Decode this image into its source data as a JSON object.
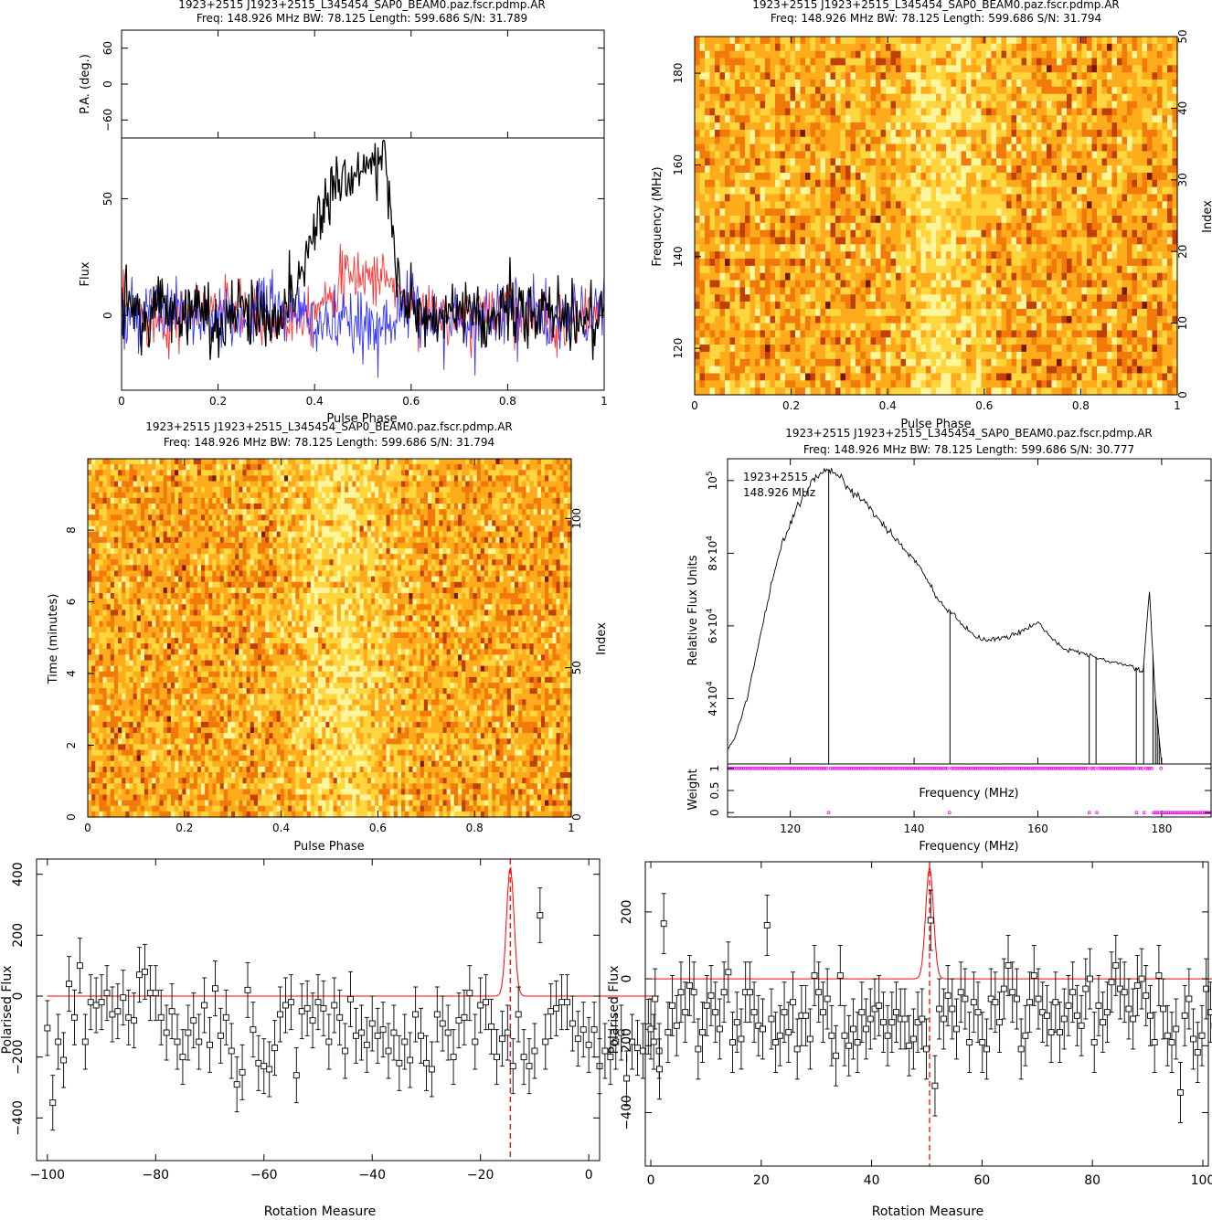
{
  "colors": {
    "stokes_i": "#000000",
    "linear_pol": "#ff3333",
    "circular_pol": "#3333ff",
    "weight_markers": "#ff00ff",
    "rm_fit": "#ff0000",
    "heatmap_palette": [
      "#fff59a",
      "#ffd63d",
      "#ffac1c",
      "#f27a0a",
      "#c0400a",
      "#7a1806"
    ]
  },
  "chart_data": [
    {
      "id": "profile",
      "type": "line",
      "title_line1": "1923+2515  J1923+2515_L345454_SAP0_BEAM0.paz.fscr.pdmp.AR",
      "title_line2": "Freq: 148.926 MHz  BW: 78.125  Length: 599.686  S/N: 31.789",
      "xlabel": "Pulse Phase",
      "ylabel": "Flux",
      "pa_ylabel": "P.A. (deg.)",
      "xlim": [
        0,
        1
      ],
      "ylim": [
        -32,
        76
      ],
      "pa_ylim": [
        -90,
        90
      ],
      "x_ticks": [
        "0",
        "0.2",
        "0.4",
        "0.6",
        "0.8",
        "1"
      ],
      "y_ticks": [
        "0",
        "50"
      ],
      "pa_ticks": [
        "60",
        "0",
        "−60"
      ],
      "series": [
        {
          "component": "I",
          "points": [
            [
              0.0,
              2
            ],
            [
              0.02,
              6
            ],
            [
              0.05,
              -5
            ],
            [
              0.08,
              8
            ],
            [
              0.1,
              0
            ],
            [
              0.15,
              3
            ],
            [
              0.2,
              -4
            ],
            [
              0.25,
              4
            ],
            [
              0.3,
              -2
            ],
            [
              0.35,
              6
            ],
            [
              0.38,
              22
            ],
            [
              0.4,
              38
            ],
            [
              0.42,
              48
            ],
            [
              0.44,
              56
            ],
            [
              0.46,
              60
            ],
            [
              0.48,
              62
            ],
            [
              0.5,
              64
            ],
            [
              0.52,
              64
            ],
            [
              0.54,
              66
            ],
            [
              0.55,
              58
            ],
            [
              0.56,
              40
            ],
            [
              0.57,
              20
            ],
            [
              0.58,
              8
            ],
            [
              0.6,
              2
            ],
            [
              0.65,
              -4
            ],
            [
              0.7,
              3
            ],
            [
              0.75,
              -6
            ],
            [
              0.8,
              5
            ],
            [
              0.85,
              -2
            ],
            [
              0.9,
              4
            ],
            [
              0.95,
              -3
            ],
            [
              1.0,
              2
            ]
          ]
        },
        {
          "component": "L",
          "points": [
            [
              0.0,
              3
            ],
            [
              0.1,
              -3
            ],
            [
              0.2,
              5
            ],
            [
              0.3,
              -4
            ],
            [
              0.4,
              4
            ],
            [
              0.45,
              14
            ],
            [
              0.5,
              18
            ],
            [
              0.55,
              16
            ],
            [
              0.6,
              4
            ],
            [
              0.7,
              -3
            ],
            [
              0.8,
              5
            ],
            [
              0.9,
              -4
            ],
            [
              1.0,
              3
            ]
          ]
        },
        {
          "component": "V",
          "points": [
            [
              0.0,
              -4
            ],
            [
              0.1,
              3
            ],
            [
              0.2,
              -5
            ],
            [
              0.3,
              4
            ],
            [
              0.4,
              -3
            ],
            [
              0.5,
              -6
            ],
            [
              0.6,
              3
            ],
            [
              0.7,
              -4
            ],
            [
              0.8,
              4
            ],
            [
              0.9,
              -3
            ],
            [
              1.0,
              2
            ]
          ]
        }
      ]
    },
    {
      "id": "freq_phase",
      "type": "heatmap",
      "title_line1": "1923+2515  J1923+2515_L345454_SAP0_BEAM0.paz.fscr.pdmp.AR",
      "title_line2": "Freq: 148.926 MHz  BW: 78.125  Length: 599.686  S/N: 31.794",
      "xlabel": "Pulse Phase",
      "ylabel": "Frequency (MHz)",
      "y2label": "Index",
      "xlim": [
        0,
        1
      ],
      "ylim": [
        109.86,
        187.99
      ],
      "y2lim": [
        0,
        50
      ],
      "x_ticks": [
        "0",
        "0.2",
        "0.4",
        "0.6",
        "0.8",
        "1"
      ],
      "y_ticks": [
        "120",
        "140",
        "160",
        "180"
      ],
      "y2_ticks": [
        "0",
        "10",
        "20",
        "30",
        "40",
        "50"
      ],
      "pulse_center": 0.52,
      "pulse_width": 0.06
    },
    {
      "id": "time_phase",
      "type": "heatmap",
      "title_line1": "1923+2515  J1923+2515_L345454_SAP0_BEAM0.paz.fscr.pdmp.AR",
      "title_line2": "Freq: 148.926 MHz  BW: 78.125  Length: 599.686  S/N: 31.794",
      "xlabel": "Pulse Phase",
      "ylabel": "Time (minutes)",
      "y2label": "Index",
      "xlim": [
        0,
        1
      ],
      "ylim": [
        0,
        9.99
      ],
      "y2lim": [
        0,
        120
      ],
      "x_ticks": [
        "0",
        "0.2",
        "0.4",
        "0.6",
        "0.8",
        "1"
      ],
      "y_ticks": [
        "0",
        "2",
        "4",
        "6",
        "8"
      ],
      "y2_ticks": [
        "0",
        "50",
        "100"
      ],
      "pulse_center": 0.52,
      "pulse_width": 0.07
    },
    {
      "id": "bandpass",
      "type": "line",
      "title_line1": "1923+2515  J1923+2515_L345454_SAP0_BEAM0.paz.fscr.pdmp.AR",
      "title_line2": "Freq: 148.926 MHz  BW: 78.125  Length: 599.686  S/N: 30.777",
      "annotation_line1": "1923+2515",
      "annotation_line2": "148.926 MHz",
      "xlabel": "Frequency (MHz)",
      "inner_xlabel": "Frequency (MHz)",
      "ylabel": "Relative Flux Units",
      "weight_label": "Weight",
      "xlim": [
        109.86,
        187.99
      ],
      "ylim": [
        22000,
        106000
      ],
      "weight_ylim": [
        -0.1,
        1.1
      ],
      "x_ticks": [
        "120",
        "140",
        "160",
        "180"
      ],
      "y_ticks": [
        {
          "mantissa": "4×10",
          "exp": "4",
          "value": 40000
        },
        {
          "mantissa": "6×10",
          "exp": "4",
          "value": 60000
        },
        {
          "mantissa": "8×10",
          "exp": "4",
          "value": 80000
        },
        {
          "mantissa": "10",
          "exp": "5",
          "value": 100000
        }
      ],
      "weight_ticks": [
        "0",
        "0.5",
        "1"
      ],
      "points": [
        [
          109.86,
          26000
        ],
        [
          111,
          29000
        ],
        [
          113,
          40000
        ],
        [
          115,
          56000
        ],
        [
          117,
          72000
        ],
        [
          119,
          84000
        ],
        [
          121,
          92000
        ],
        [
          123,
          98000
        ],
        [
          124,
          100500
        ],
        [
          125,
          102000
        ],
        [
          126,
          103000
        ],
        [
          127,
          103000
        ],
        [
          128,
          101000
        ],
        [
          130,
          97000
        ],
        [
          132,
          94000
        ],
        [
          135,
          88000
        ],
        [
          138,
          82000
        ],
        [
          141,
          76000
        ],
        [
          143,
          70000
        ],
        [
          144,
          67000
        ],
        [
          145,
          65000
        ],
        [
          146,
          64000
        ],
        [
          148,
          60000
        ],
        [
          150,
          57000
        ],
        [
          152,
          56000
        ],
        [
          155,
          57000
        ],
        [
          157,
          58000
        ],
        [
          160,
          61000
        ],
        [
          162,
          57000
        ],
        [
          164,
          54000
        ],
        [
          166,
          53000
        ],
        [
          168,
          52000
        ],
        [
          170,
          51000
        ],
        [
          172,
          50000
        ],
        [
          174,
          49500
        ],
        [
          175,
          49000
        ],
        [
          176,
          48000
        ],
        [
          177,
          47000
        ],
        [
          178,
          70000
        ],
        [
          179,
          40000
        ],
        [
          180,
          22000
        ]
      ],
      "zero_weight_channels": [
        126.2,
        145.8,
        168.3,
        169.4,
        175.9,
        177.1,
        178.6,
        179.0,
        179.3,
        179.6,
        180.1,
        180.5
      ]
    },
    {
      "id": "rm_left",
      "type": "scatter",
      "xlabel": "Rotation Measure",
      "ylabel": "Polarised Flux",
      "xlim": [
        -102,
        2
      ],
      "ylim": [
        -540,
        450
      ],
      "x_ticks": [
        "−100",
        "−80",
        "−60",
        "−40",
        "−20",
        "0"
      ],
      "y_ticks": [
        "−400",
        "−200",
        "0",
        "200",
        "400"
      ],
      "best_rm": -14.5,
      "peak_flux": 265,
      "x_start": -100,
      "x_step": 1,
      "values": [
        -105,
        -350,
        -150,
        -210,
        40,
        -70,
        100,
        -150,
        -20,
        -30,
        -20,
        10,
        -60,
        -50,
        -5,
        -70,
        -80,
        70,
        80,
        10,
        10,
        -70,
        -120,
        -50,
        -150,
        -200,
        -120,
        -80,
        -150,
        -30,
        -160,
        25,
        -130,
        -70,
        -180,
        -290,
        -250,
        20,
        -110,
        -220,
        -230,
        -240,
        -170,
        -60,
        -30,
        -20,
        -260,
        -50,
        -40,
        -80,
        -20,
        -40,
        -150,
        -30,
        -70,
        -180,
        -10,
        -130,
        -120,
        -160,
        -90,
        -130,
        -110,
        -180,
        -120,
        -220,
        -150,
        -210,
        -60,
        -130,
        -220,
        -240,
        -60,
        -90,
        -120,
        -200,
        -80,
        -70,
        10,
        -150,
        -30,
        -20,
        -100,
        -200,
        -140,
        -120,
        -230,
        -60,
        -200,
        -230,
        -180,
        265,
        -150,
        -50,
        -40,
        -20,
        -20,
        -90,
        -140,
        -110,
        -160,
        -110,
        -230,
        -180,
        -200,
        -150,
        -120,
        -270,
        -150,
        -170,
        -180,
        -100,
        -150,
        -180
      ],
      "errors": 90
    },
    {
      "id": "rm_right",
      "type": "scatter",
      "xlabel": "Rotation Measure",
      "ylabel": "Polarised Flux",
      "xlim": [
        -1,
        101
      ],
      "ylim": [
        -560,
        350
      ],
      "x_ticks": [
        "0",
        "20",
        "40",
        "60",
        "80",
        "100"
      ],
      "y_ticks": [
        "−400",
        "−200",
        "0",
        "200"
      ],
      "best_rm": 50.5,
      "peak_flux": 175,
      "x_start": 0,
      "x_step": 0.78,
      "values": [
        -150,
        -60,
        -270,
        165,
        -160,
        -80,
        -140,
        -40,
        -100,
        -20,
        -40,
        -210,
        -160,
        -80,
        -50,
        -100,
        -150,
        -40,
        20,
        -190,
        -130,
        -180,
        -40,
        -40,
        -100,
        -140,
        -150,
        160,
        -120,
        -190,
        -170,
        -100,
        -160,
        -70,
        -210,
        -110,
        -110,
        -180,
        10,
        -40,
        -100,
        -60,
        -170,
        -230,
        10,
        -170,
        -200,
        -150,
        -190,
        -100,
        -150,
        -120,
        -90,
        -80,
        -130,
        -170,
        -130,
        -100,
        -120,
        -120,
        -200,
        -180,
        -130,
        -120,
        -210,
        175,
        -320,
        -90,
        -120,
        -50,
        -90,
        -150,
        -40,
        -60,
        -190,
        -70,
        -100,
        -190,
        -210,
        -60,
        -70,
        -130,
        -30,
        40,
        -40,
        -60,
        -210,
        -170,
        -70,
        10,
        -60,
        -100,
        -110,
        -160,
        -70,
        -160,
        -120,
        -80,
        -40,
        -110,
        -140,
        -30,
        0,
        -190,
        -80,
        -130,
        -100,
        -10,
        40,
        -30,
        -40,
        -90,
        -120,
        -20,
        0,
        -50,
        -110,
        -190,
        10,
        -90,
        -170,
        -190,
        -150,
        -340,
        -110,
        -60,
        -180,
        -220,
        -170,
        -30,
        -100,
        -140,
        -70,
        -120,
        -40,
        -100,
        -160,
        -20
      ],
      "errors": 90
    }
  ]
}
